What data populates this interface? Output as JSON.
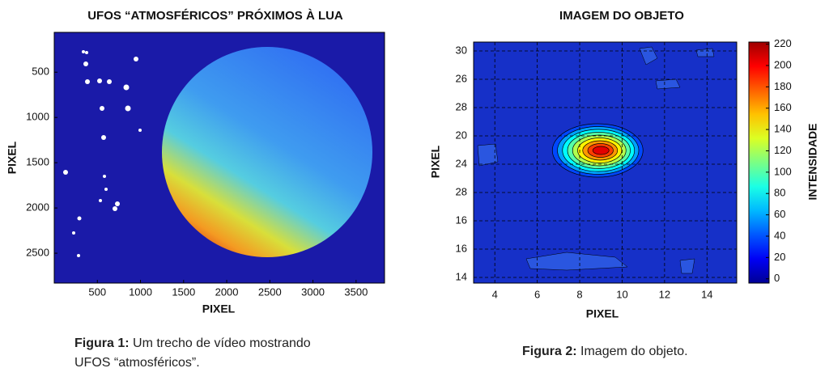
{
  "chart_data": [
    {
      "type": "image",
      "title": "UFOS “ATMOSFÉRICOS” PRÓXIMOS À LUA",
      "x_label": "PIXEL",
      "y_label": "PIXEL",
      "xlim": [
        0,
        3830
      ],
      "ylim": [
        60,
        2830
      ],
      "y_reversed": true,
      "xticks": [
        500,
        1000,
        1500,
        2000,
        2500,
        3000,
        3500
      ],
      "yticks": [
        500,
        1000,
        1500,
        2000,
        2500
      ],
      "background": "#1a1aa8",
      "caption": {
        "label": "Figura 1:",
        "text": "Um trecho de vídeo mostrando UFOS “atmosféricos”."
      }
    },
    {
      "type": "contour",
      "title": "IMAGEM DO OBJETO",
      "x_label": "PIXEL",
      "y_label": "PIXEL",
      "colorbar_label": "INTENSIDADE",
      "xlim": [
        3,
        15.4
      ],
      "xticks": [
        4,
        6,
        8,
        10,
        12,
        14
      ],
      "ycategories": [
        "30",
        "26",
        "28",
        "20",
        "24",
        "28",
        "16",
        "16",
        "14"
      ],
      "grid": true,
      "peak_x": 9,
      "levels": [
        40,
        60,
        80,
        100,
        120,
        140,
        160,
        180,
        200
      ],
      "clim": [
        -4,
        222
      ],
      "cticks": [
        0,
        20,
        40,
        60,
        80,
        100,
        120,
        140,
        160,
        180,
        200,
        220
      ],
      "caption": {
        "label": "Figura 2:",
        "text": "Imagem do objeto."
      }
    }
  ]
}
